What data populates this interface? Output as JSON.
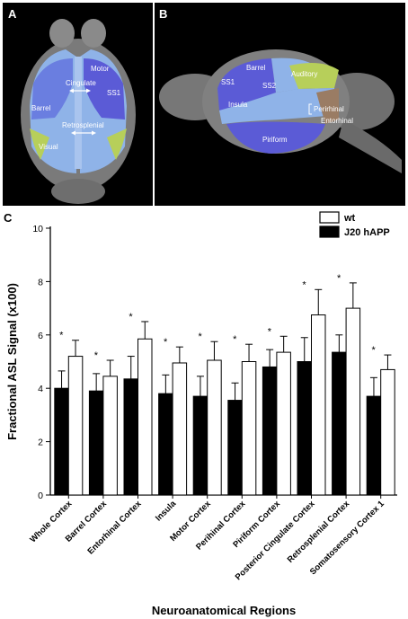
{
  "panels": {
    "a": {
      "letter": "A",
      "labels": [
        "Motor",
        "Cingulate",
        "SS1",
        "Barrel",
        "Retrosplenial",
        "Visual"
      ]
    },
    "b": {
      "letter": "B",
      "labels": [
        "Barrel",
        "SS1",
        "SS2",
        "Auditory",
        "Insula",
        "Perirhinal",
        "Entorhinal",
        "Piriform"
      ]
    }
  },
  "colors": {
    "wt": "#ffffff",
    "j20": "#000000",
    "brain_gray": "#7a7a7a",
    "region_blue": "#8fb3e8",
    "region_purple": "#5b5bd6",
    "region_green": "#b7cf5a",
    "region_brown": "#9a7c64"
  },
  "chart_data": {
    "type": "bar",
    "panel_letter": "C",
    "xlabel": "Neuroanatomical Regions",
    "ylabel": "Fractional ASL Signal (x100)",
    "ylim": [
      0,
      10
    ],
    "yticks": [
      0,
      2,
      4,
      6,
      8,
      10
    ],
    "grid": false,
    "legend_position": "top-right",
    "categories": [
      "Whole Cortex",
      "Barrel Cortex",
      "Entorhinal Cortex",
      "Insula",
      "Motor Cortex",
      "Perihinal Cortex",
      "Piriform Cortex",
      "Posterior Cingulate Cortex",
      "Retrosplenial Cortex",
      "Somatosensory Cortex 1"
    ],
    "series": [
      {
        "name": "J20 hAPP",
        "values": [
          4.0,
          3.9,
          4.35,
          3.8,
          3.7,
          3.55,
          4.8,
          5.0,
          5.35,
          3.7
        ],
        "errors": [
          0.65,
          0.65,
          0.85,
          0.7,
          0.75,
          0.65,
          0.65,
          0.9,
          0.65,
          0.7
        ]
      },
      {
        "name": "wt",
        "values": [
          5.2,
          4.45,
          5.85,
          4.95,
          5.05,
          5.0,
          5.35,
          6.75,
          7.0,
          4.7
        ],
        "errors": [
          0.6,
          0.6,
          0.65,
          0.6,
          0.7,
          0.65,
          0.6,
          0.95,
          0.95,
          0.55
        ]
      }
    ],
    "significance": [
      "*",
      "*",
      "*",
      "*",
      "*",
      "*",
      "*",
      "*",
      "*",
      "*"
    ]
  }
}
